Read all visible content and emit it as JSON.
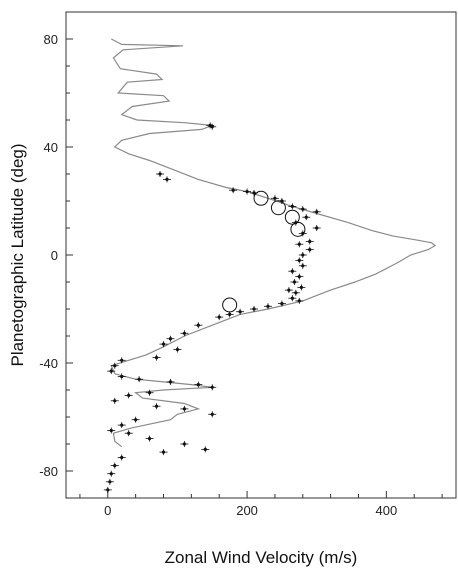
{
  "chart_data": {
    "type": "scatter",
    "title": "",
    "xlabel": "Zonal Wind Velocity (m/s)",
    "ylabel": "Planetographic Latitude (deg)",
    "xlim": [
      -60,
      500
    ],
    "ylim": [
      -90,
      90
    ],
    "x_ticks": [
      0,
      200,
      400
    ],
    "y_ticks": [
      80,
      40,
      0,
      -40,
      -80
    ],
    "x_tick_labels": [
      "0",
      "200",
      "400"
    ],
    "y_tick_labels": [
      "80",
      "40",
      "0",
      "-40",
      "-80"
    ],
    "grid": false,
    "series": [
      {
        "style": "line",
        "color": "#8a8a8a",
        "points": [
          [
            5,
            80
          ],
          [
            20,
            78
          ],
          [
            108,
            77.5
          ],
          [
            22,
            76
          ],
          [
            8,
            73
          ],
          [
            18,
            69
          ],
          [
            70,
            67
          ],
          [
            78,
            65
          ],
          [
            28,
            64
          ],
          [
            15,
            60
          ],
          [
            80,
            59
          ],
          [
            88,
            57
          ],
          [
            35,
            55
          ],
          [
            20,
            52
          ],
          [
            42,
            50
          ],
          [
            110,
            49
          ],
          [
            150,
            48
          ],
          [
            135,
            46.5
          ],
          [
            60,
            45
          ],
          [
            20,
            42.5
          ],
          [
            10,
            40
          ],
          [
            30,
            37.5
          ],
          [
            60,
            35
          ],
          [
            90,
            32
          ],
          [
            130,
            28
          ],
          [
            170,
            25
          ],
          [
            200,
            23.5
          ],
          [
            230,
            21
          ],
          [
            265,
            18
          ],
          [
            305,
            15
          ],
          [
            345,
            12
          ],
          [
            380,
            9
          ],
          [
            410,
            7
          ],
          [
            445,
            5.5
          ],
          [
            465,
            4.5
          ],
          [
            470,
            3.5
          ],
          [
            460,
            2
          ],
          [
            435,
            0
          ],
          [
            415,
            -3
          ],
          [
            385,
            -7
          ],
          [
            355,
            -10
          ],
          [
            320,
            -13
          ],
          [
            280,
            -17
          ],
          [
            230,
            -20
          ],
          [
            190,
            -22
          ],
          [
            150,
            -26
          ],
          [
            110,
            -30
          ],
          [
            80,
            -34
          ],
          [
            55,
            -37
          ],
          [
            30,
            -39
          ],
          [
            5,
            -41
          ],
          [
            10,
            -44
          ],
          [
            40,
            -46
          ],
          [
            80,
            -47
          ],
          [
            120,
            -48
          ],
          [
            150,
            -49
          ],
          [
            80,
            -50
          ],
          [
            40,
            -51
          ],
          [
            50,
            -53
          ],
          [
            110,
            -55
          ],
          [
            130,
            -57
          ],
          [
            100,
            -59
          ],
          [
            90,
            -61
          ],
          [
            35,
            -64
          ],
          [
            8,
            -66
          ],
          [
            10,
            -69
          ],
          [
            20,
            -71
          ]
        ]
      },
      {
        "style": "points",
        "color": "#111111",
        "points": [
          [
            147,
            48
          ],
          [
            150,
            47.5
          ],
          [
            75,
            30
          ],
          [
            85,
            28
          ],
          [
            180,
            24
          ],
          [
            200,
            23.5
          ],
          [
            210,
            23
          ],
          [
            240,
            21
          ],
          [
            250,
            20
          ],
          [
            265,
            18
          ],
          [
            280,
            17
          ],
          [
            300,
            16
          ],
          [
            285,
            14
          ],
          [
            270,
            12
          ],
          [
            300,
            10
          ],
          [
            280,
            8
          ],
          [
            290,
            5
          ],
          [
            275,
            4
          ],
          [
            290,
            2
          ],
          [
            280,
            0
          ],
          [
            275,
            -2
          ],
          [
            280,
            -4
          ],
          [
            265,
            -6
          ],
          [
            275,
            -8
          ],
          [
            268,
            -10
          ],
          [
            278,
            -12
          ],
          [
            260,
            -13
          ],
          [
            270,
            -14
          ],
          [
            265,
            -16
          ],
          [
            275,
            -17
          ],
          [
            250,
            -18
          ],
          [
            230,
            -19
          ],
          [
            210,
            -20
          ],
          [
            190,
            -21
          ],
          [
            175,
            -22
          ],
          [
            160,
            -23
          ],
          [
            130,
            -26
          ],
          [
            110,
            -29
          ],
          [
            90,
            -31
          ],
          [
            80,
            -33
          ],
          [
            100,
            -35
          ],
          [
            70,
            -38
          ],
          [
            20,
            -39
          ],
          [
            10,
            -41
          ],
          [
            5,
            -43
          ],
          [
            20,
            -45
          ],
          [
            45,
            -46
          ],
          [
            90,
            -47
          ],
          [
            130,
            -48
          ],
          [
            150,
            -49
          ],
          [
            60,
            -51
          ],
          [
            30,
            -52
          ],
          [
            10,
            -54
          ],
          [
            70,
            -56
          ],
          [
            110,
            -57
          ],
          [
            150,
            -59
          ],
          [
            40,
            -61
          ],
          [
            20,
            -63
          ],
          [
            5,
            -65
          ],
          [
            30,
            -66
          ],
          [
            60,
            -68
          ],
          [
            110,
            -70
          ],
          [
            140,
            -72
          ],
          [
            80,
            -73
          ],
          [
            20,
            -75
          ],
          [
            10,
            -78
          ],
          [
            5,
            -81
          ],
          [
            3,
            -84
          ],
          [
            0,
            -87
          ]
        ]
      },
      {
        "style": "open-circles",
        "color": "#111111",
        "points": [
          [
            220,
            21
          ],
          [
            245,
            17.5
          ],
          [
            265,
            14
          ],
          [
            273,
            9.5
          ],
          [
            175,
            -18.5
          ]
        ]
      }
    ]
  }
}
